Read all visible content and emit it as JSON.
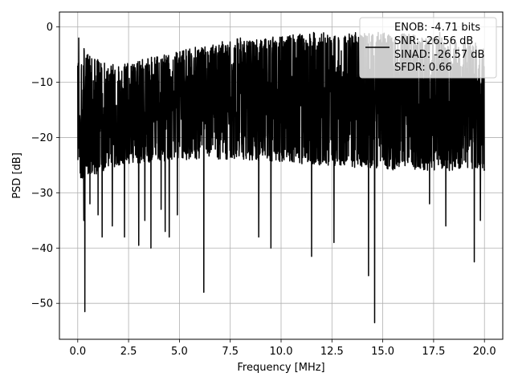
{
  "chart_data": {
    "type": "line",
    "title": "",
    "xlabel": "Frequency [MHz]",
    "ylabel": "PSD [dB]",
    "xlim": [
      -0.9,
      20.9
    ],
    "ylim": [
      -56.5,
      2.7
    ],
    "xticks": [
      0.0,
      2.5,
      5.0,
      7.5,
      10.0,
      12.5,
      15.0,
      17.5,
      20.0
    ],
    "xtick_labels": [
      "0.0",
      "2.5",
      "5.0",
      "7.5",
      "10.0",
      "12.5",
      "15.0",
      "17.5",
      "20.0"
    ],
    "yticks": [
      0,
      -10,
      -20,
      -30,
      -40,
      -50
    ],
    "ytick_labels": [
      "0",
      "−10",
      "−20",
      "−30",
      "−40",
      "−50"
    ],
    "grid": true,
    "legend_position": "top-right",
    "legend_lines": [
      "ENOB: -4.71 bits",
      "SNR: -26.56 dB",
      "SINAD: -26.57 dB",
      "SFDR: 0.66"
    ],
    "series": [
      {
        "color": "#000000",
        "x_range": [
          0.0,
          20.0
        ],
        "band_upper": [
          [
            0.0,
            -2
          ],
          [
            0.5,
            -5
          ],
          [
            2.0,
            -7
          ],
          [
            4.0,
            -5
          ],
          [
            8.0,
            -2
          ],
          [
            12.0,
            -1
          ],
          [
            16.0,
            -1
          ],
          [
            20.0,
            -3
          ]
        ],
        "band_lower": [
          [
            0.0,
            -28
          ],
          [
            2.0,
            -25
          ],
          [
            5.0,
            -24
          ],
          [
            8.0,
            -24
          ],
          [
            12.0,
            -25
          ],
          [
            16.0,
            -26
          ],
          [
            20.0,
            -26
          ]
        ],
        "peaks": [
          [
            0.05,
            -2
          ],
          [
            0.4,
            -9
          ],
          [
            0.5,
            -5
          ],
          [
            8.0,
            -2
          ],
          [
            7.9,
            -3
          ],
          [
            11.6,
            -1
          ],
          [
            11.9,
            -2
          ],
          [
            13.4,
            -2
          ],
          [
            14.5,
            -2
          ],
          [
            16.4,
            -2
          ],
          [
            17.8,
            -1
          ],
          [
            17.9,
            -2
          ],
          [
            19.3,
            -3
          ]
        ],
        "dips": [
          [
            0.35,
            -51.5
          ],
          [
            0.3,
            -35
          ],
          [
            0.6,
            -32
          ],
          [
            1.0,
            -34
          ],
          [
            1.2,
            -38
          ],
          [
            1.7,
            -36
          ],
          [
            2.3,
            -38
          ],
          [
            3.0,
            -39.5
          ],
          [
            3.3,
            -35
          ],
          [
            3.6,
            -40
          ],
          [
            4.1,
            -33
          ],
          [
            4.3,
            -37
          ],
          [
            4.5,
            -38
          ],
          [
            4.9,
            -34
          ],
          [
            6.2,
            -48
          ],
          [
            8.9,
            -38
          ],
          [
            9.5,
            -40
          ],
          [
            11.5,
            -41.5
          ],
          [
            12.6,
            -39
          ],
          [
            14.3,
            -45
          ],
          [
            14.6,
            -53.5
          ],
          [
            17.3,
            -32
          ],
          [
            18.1,
            -36
          ],
          [
            19.5,
            -42.5
          ],
          [
            19.8,
            -35
          ]
        ]
      }
    ]
  }
}
